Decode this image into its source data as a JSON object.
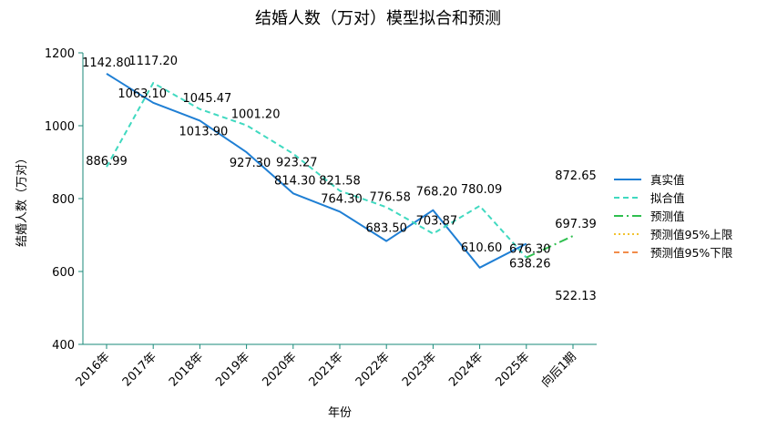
{
  "chart_data": {
    "type": "line",
    "title": "结婚人数（万对）模型拟合和预测",
    "xlabel": "年份",
    "ylabel": "结婚人数（万对）",
    "ylim": [
      400,
      1200
    ],
    "yticks": [
      400,
      600,
      800,
      1000,
      1200
    ],
    "categories": [
      "2016年",
      "2017年",
      "2018年",
      "2019年",
      "2020年",
      "2021年",
      "2022年",
      "2023年",
      "2024年",
      "2025年",
      "向后1期"
    ],
    "grid": false,
    "legend_position": "right",
    "series": [
      {
        "name": "真实值",
        "color": "#1f7fd4",
        "style": "solid",
        "values": [
          1142.8,
          1063.1,
          1013.9,
          927.3,
          814.3,
          764.3,
          683.5,
          768.2,
          610.6,
          676.3,
          null
        ],
        "labels": [
          "1142.80",
          "1063.10",
          "1013.90",
          "927.30",
          "814.30",
          "764.30",
          "683.50",
          "768.20",
          "610.60",
          "676.30",
          ""
        ]
      },
      {
        "name": "拟合值",
        "color": "#40d9c0",
        "style": "dashed",
        "values": [
          886.99,
          1117.2,
          1045.47,
          1001.2,
          923.27,
          821.58,
          776.58,
          703.87,
          780.09,
          638.26,
          null
        ],
        "labels": [
          "886.99",
          "1117.20",
          "1045.47",
          "1001.20",
          "923.27",
          "821.58",
          "776.58",
          "703.87",
          "780.09",
          "638.26",
          ""
        ]
      },
      {
        "name": "预测值",
        "color": "#2fbf4f",
        "style": "dashdot",
        "values": [
          null,
          null,
          null,
          null,
          null,
          null,
          null,
          null,
          null,
          638.26,
          697.39
        ],
        "labels": [
          "",
          "",
          "",
          "",
          "",
          "",
          "",
          "",
          "",
          "",
          "697.39"
        ]
      },
      {
        "name": "预测值95%上限",
        "color": "#f2c330",
        "style": "dotted",
        "values": [
          null,
          null,
          null,
          null,
          null,
          null,
          null,
          null,
          null,
          null,
          872.65
        ],
        "labels": [
          "",
          "",
          "",
          "",
          "",
          "",
          "",
          "",
          "",
          "",
          "872.65"
        ]
      },
      {
        "name": "预测值95%下限",
        "color": "#f28c4a",
        "style": "dashed",
        "values": [
          null,
          null,
          null,
          null,
          null,
          null,
          null,
          null,
          null,
          null,
          522.13
        ],
        "labels": [
          "",
          "",
          "",
          "",
          "",
          "",
          "",
          "",
          "",
          "",
          "522.13"
        ]
      }
    ],
    "axis_color": "#1a8a7a"
  }
}
